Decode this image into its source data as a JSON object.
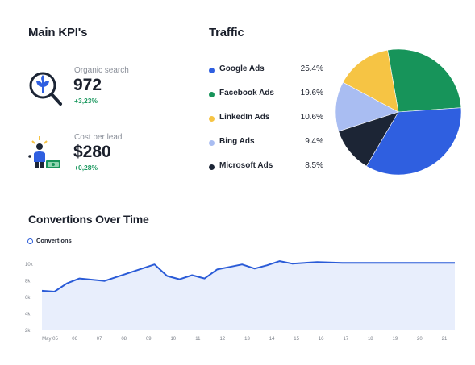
{
  "kpis": {
    "title": "Main KPI's",
    "items": [
      {
        "label": "Organic search",
        "value": "972",
        "delta": "+3,23%",
        "icon": "plant-magnifier-icon"
      },
      {
        "label": "Cost per lead",
        "value": "$280",
        "delta": "+0,28%",
        "icon": "person-cash-icon"
      }
    ]
  },
  "traffic": {
    "title": "Traffic",
    "items": [
      {
        "name": "Google Ads",
        "pct": "25.4%",
        "value": 25.4,
        "color": "#2f5fe0"
      },
      {
        "name": "Facebook Ads",
        "pct": "19.6%",
        "value": 19.6,
        "color": "#17945a"
      },
      {
        "name": "LinkedIn Ads",
        "pct": "10.6%",
        "value": 10.6,
        "color": "#f6c444"
      },
      {
        "name": "Bing Ads",
        "pct": "9.4%",
        "value": 9.4,
        "color": "#a9bdf2"
      },
      {
        "name": "Microsoft Ads",
        "pct": "8.5%",
        "value": 8.5,
        "color": "#1c2535"
      }
    ]
  },
  "conversions": {
    "title": "Convertions Over Time",
    "legend": "Convertions",
    "color": "#2a5bd7",
    "fill": "#e8eefc"
  },
  "chart_data": {
    "type": "area",
    "x": [
      "May 05",
      "05.5",
      "06",
      "06.5",
      "07",
      "07.5",
      "08",
      "08.5",
      "09",
      "09.5",
      "10",
      "10.5",
      "11",
      "11.5",
      "12",
      "12.3",
      "12.7",
      "13",
      "14",
      "14.5",
      "15",
      "15.5",
      "16",
      "16.5",
      "17",
      "17.5",
      "18",
      "18.5",
      "19",
      "19.5",
      "20",
      "20.5",
      "21",
      "21.5"
    ],
    "xticks": [
      "May 05",
      "06",
      "07",
      "08",
      "09",
      "10",
      "11",
      "12",
      "13",
      "14",
      "15",
      "16",
      "17",
      "18",
      "19",
      "20",
      "21"
    ],
    "yticks": [
      "10k",
      "8k",
      "6k",
      "4k",
      "2k"
    ],
    "ylim": [
      2000,
      11000
    ],
    "series": [
      {
        "name": "Convertions",
        "values": [
          6800,
          6700,
          7700,
          8300,
          8150,
          8000,
          8500,
          9000,
          9500,
          10000,
          8600,
          8200,
          8700,
          8300,
          9400,
          9700,
          10000,
          9500,
          9900,
          10400,
          10100,
          10200,
          10300,
          10250,
          10200,
          10200,
          10200,
          10200,
          10200,
          10200,
          10200,
          10200,
          10200,
          10200
        ]
      }
    ]
  }
}
